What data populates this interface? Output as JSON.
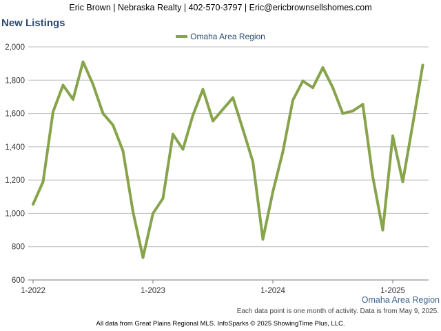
{
  "header": {
    "contact": "Eric Brown | Nebraska Realty | 402-570-3797 | Eric@ericbrownsellshomes.com"
  },
  "region_caption": "Omaha Area Region",
  "data_note": "Each data point is one month of activity. Data is from May 9, 2025.",
  "footer": "All data from Great Plains Regional MLS. InfoSparks © 2025 ShowingTime Plus, LLC.",
  "colors": {
    "line": "#87a34b",
    "title": "#2b4a72",
    "grid": "#bbbbbb",
    "axis": "#7a7a7a"
  },
  "chart_data": {
    "type": "line",
    "title": "New Listings",
    "x_tick_labels": [
      "1-2022",
      "1-2023",
      "1-2024",
      "1-2025"
    ],
    "y_tick_labels": [
      "600",
      "800",
      "1,000",
      "1,200",
      "1,400",
      "1,600",
      "1,800",
      "2,000"
    ],
    "ylim": [
      600,
      2000
    ],
    "grid": true,
    "legend_position": "top-center",
    "series": [
      {
        "name": "Omaha Area Region",
        "x": [
          "2022-01",
          "2022-02",
          "2022-03",
          "2022-04",
          "2022-05",
          "2022-06",
          "2022-07",
          "2022-08",
          "2022-09",
          "2022-10",
          "2022-11",
          "2022-12",
          "2023-01",
          "2023-02",
          "2023-03",
          "2023-04",
          "2023-05",
          "2023-06",
          "2023-07",
          "2023-08",
          "2023-09",
          "2023-10",
          "2023-11",
          "2023-12",
          "2024-01",
          "2024-02",
          "2024-03",
          "2024-04",
          "2024-05",
          "2024-06",
          "2024-07",
          "2024-08",
          "2024-09",
          "2024-10",
          "2024-11",
          "2024-12",
          "2025-01",
          "2025-02",
          "2025-03",
          "2025-04"
        ],
        "values": [
          1055,
          1190,
          1610,
          1770,
          1685,
          1910,
          1775,
          1600,
          1530,
          1375,
          1010,
          735,
          1000,
          1090,
          1475,
          1385,
          1590,
          1745,
          1555,
          1625,
          1695,
          1505,
          1310,
          845,
          1130,
          1370,
          1680,
          1795,
          1755,
          1875,
          1755,
          1600,
          1615,
          1655,
          1220,
          900,
          1465,
          1190,
          1535,
          1890
        ]
      }
    ]
  }
}
